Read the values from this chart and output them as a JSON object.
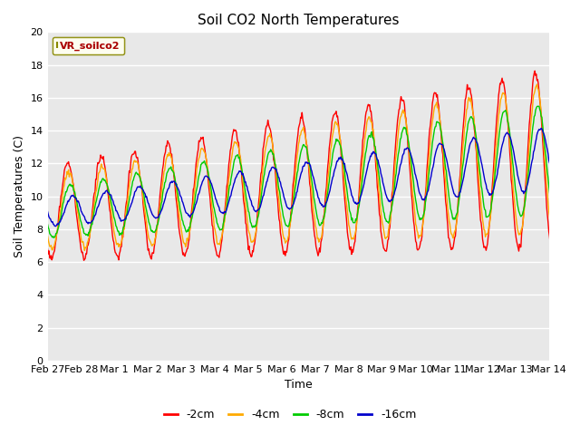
{
  "title": "Soil CO2 North Temperatures",
  "xlabel": "Time",
  "ylabel": "Soil Temperatures (C)",
  "ylim": [
    0,
    20
  ],
  "yticks": [
    0,
    2,
    4,
    6,
    8,
    10,
    12,
    14,
    16,
    18,
    20
  ],
  "legend_label": "VR_soilco2",
  "series_labels": [
    "-2cm",
    "-4cm",
    "-8cm",
    "-16cm"
  ],
  "series_colors": [
    "#ff0000",
    "#ffaa00",
    "#00cc00",
    "#0000cc"
  ],
  "xtick_labels": [
    "Feb 27",
    "Feb 28",
    "Mar 1",
    "Mar 2",
    "Mar 3",
    "Mar 4",
    "Mar 5",
    "Mar 6",
    "Mar 7",
    "Mar 8",
    "Mar 9",
    "Mar 10",
    "Mar 11",
    "Mar 12",
    "Mar 13",
    "Mar 14"
  ],
  "fig_bg_color": "#ffffff",
  "plot_bg_color": "#e8e8e8",
  "grid_color": "#ffffff",
  "line_width": 1.0,
  "title_fontsize": 11,
  "axis_label_fontsize": 9,
  "tick_fontsize": 8
}
